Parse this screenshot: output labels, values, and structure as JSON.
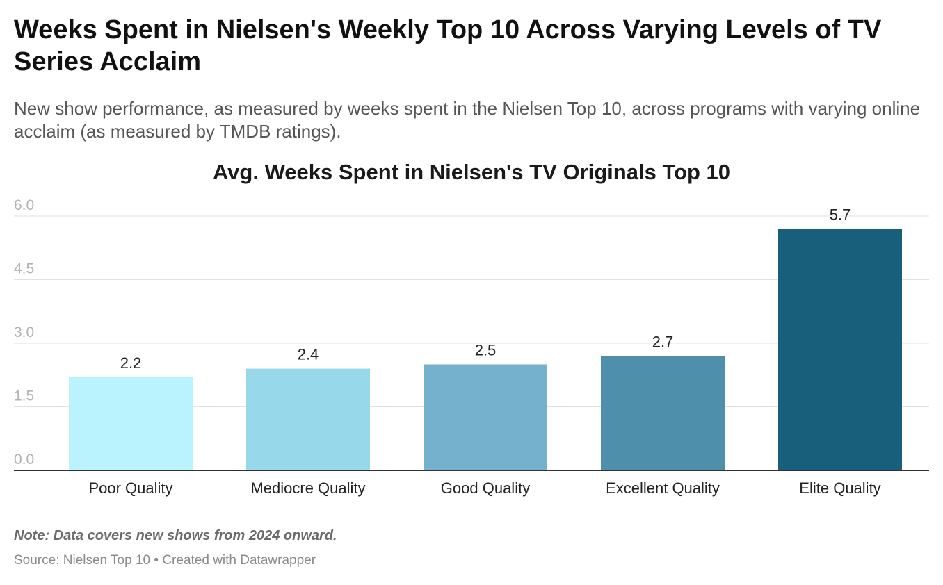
{
  "header": {
    "title": "Weeks Spent in Nielsen's Weekly Top 10 Across Varying Levels of TV Series Acclaim",
    "subtitle": "New show performance, as measured by weeks spent in the Nielsen Top 10, across programs with varying online acclaim (as measured by TMDB ratings)."
  },
  "chart_data": {
    "type": "bar",
    "title": "Avg. Weeks Spent in Nielsen's TV Originals Top 10",
    "categories": [
      "Poor Quality",
      "Mediocre Quality",
      "Good Quality",
      "Excellent Quality",
      "Elite Quality"
    ],
    "values": [
      2.2,
      2.4,
      2.5,
      2.7,
      5.7
    ],
    "value_labels": [
      "2.2",
      "2.4",
      "2.5",
      "2.7",
      "5.7"
    ],
    "colors": [
      "#baf3fd",
      "#97d8ea",
      "#75b1cd",
      "#4e8fab",
      "#175f7a"
    ],
    "yticks": [
      0,
      1.5,
      3,
      4.5,
      6
    ],
    "ytick_labels": [
      "0.0",
      "1.5",
      "3.0",
      "4.5",
      "6.0"
    ],
    "ylim": [
      0,
      6
    ],
    "xlabel": "",
    "ylabel": "",
    "grid": true
  },
  "footer": {
    "note": "Note: Data covers new shows from 2024 onward.",
    "source": "Source: Nielsen Top 10",
    "separator": "•",
    "credit": "Created with Datawrapper"
  }
}
